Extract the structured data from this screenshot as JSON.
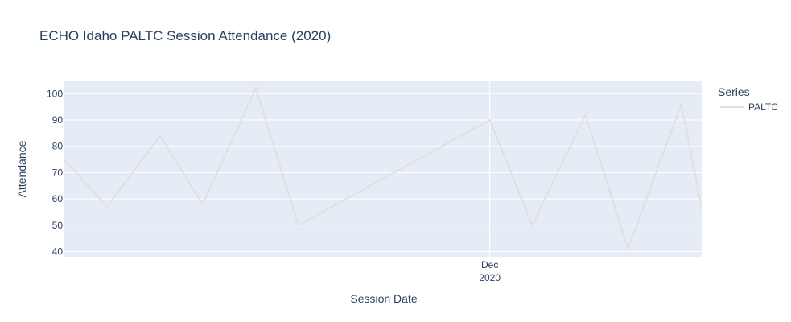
{
  "chart_data": {
    "type": "line",
    "title": "ECHO Idaho PALTC Session Attendance (2020)",
    "xlabel": "Session Date",
    "ylabel": "Attendance",
    "x_axis_type": "date",
    "x_tick_labels": [
      {
        "month": "Dec",
        "year": "2020",
        "date": "2020-12-01"
      }
    ],
    "ylim": [
      38,
      105
    ],
    "y_ticks": [
      40,
      50,
      60,
      70,
      80,
      90,
      100
    ],
    "xlim": [
      "2020-10-22",
      "2020-12-21"
    ],
    "grid": true,
    "legend": {
      "title": "Series",
      "placement": "right"
    },
    "colors": {
      "plot_bg": "#e5ecf6",
      "grid": "#ffffff",
      "line": "#e0e0e0",
      "text": "#2a3f5f"
    },
    "series": [
      {
        "name": "PALTC",
        "x": [
          "2020-10-22",
          "2020-10-26",
          "2020-10-31",
          "2020-11-04",
          "2020-11-09",
          "2020-11-13",
          "2020-12-01",
          "2020-12-05",
          "2020-12-10",
          "2020-12-14",
          "2020-12-19",
          "2020-12-21"
        ],
        "y": [
          75,
          57,
          84,
          58,
          102,
          50,
          90,
          50,
          92,
          41,
          96,
          55
        ]
      }
    ]
  }
}
